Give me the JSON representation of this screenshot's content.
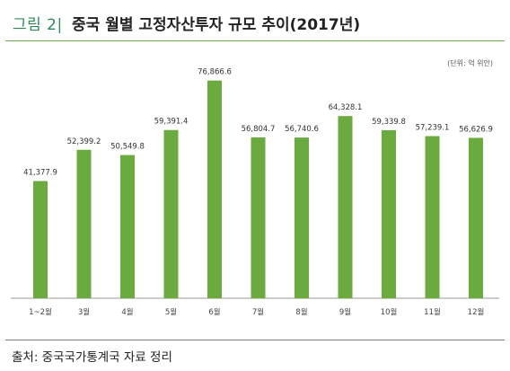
{
  "header": {
    "figure_label": "그림 2|",
    "title": "중국 월별 고정자산투자 규모 추이(2017년)"
  },
  "source_note": "출처: 중국국가통계국 자료 정리",
  "colors": {
    "bar": "#6aaa3e",
    "accent": "#2e8b57"
  },
  "chart_data": {
    "type": "bar",
    "title": "중국 월별 고정자산투자 규모 추이(2017년)",
    "unit_note": "(단위: 억 위안)",
    "categories": [
      "1~2월",
      "3월",
      "4월",
      "5월",
      "6월",
      "7월",
      "8월",
      "9월",
      "10월",
      "11월",
      "12월"
    ],
    "values": [
      41377.9,
      52399.2,
      50549.8,
      59391.4,
      76866.6,
      56804.7,
      56740.6,
      64328.1,
      59339.8,
      57239.1,
      56626.9
    ],
    "value_labels": [
      "41,377.9",
      "52,399.2",
      "50,549.8",
      "59,391.4",
      "76,866.6",
      "56,804.7",
      "56,740.6",
      "64,328.1",
      "59,339.8",
      "57,239.1",
      "56,626.9"
    ],
    "ylim": [
      0,
      85000
    ],
    "xlabel": "",
    "ylabel": "",
    "grid": false,
    "legend": "none"
  }
}
